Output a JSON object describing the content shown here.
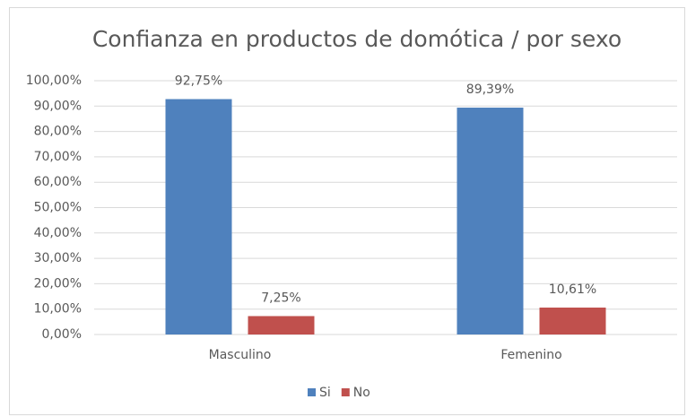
{
  "chart_data": {
    "type": "bar",
    "title": "Confianza en productos de domótica / por sexo",
    "categories": [
      "Masculino",
      "Femenino"
    ],
    "series": [
      {
        "name": "Si",
        "color": "#4f81bd",
        "values": [
          92.75,
          89.39
        ],
        "value_labels": [
          "92,75%",
          "89,39%"
        ]
      },
      {
        "name": "No",
        "color": "#c0504d",
        "values": [
          7.25,
          10.61
        ],
        "value_labels": [
          "7,25%",
          "10,61%"
        ]
      }
    ],
    "ylim": [
      0,
      100
    ],
    "yticks": [
      {
        "value": 0,
        "label": "0,00%"
      },
      {
        "value": 10,
        "label": "10,00%"
      },
      {
        "value": 20,
        "label": "20,00%"
      },
      {
        "value": 30,
        "label": "30,00%"
      },
      {
        "value": 40,
        "label": "40,00%"
      },
      {
        "value": 50,
        "label": "50,00%"
      },
      {
        "value": 60,
        "label": "60,00%"
      },
      {
        "value": 70,
        "label": "70,00%"
      },
      {
        "value": 80,
        "label": "80,00%"
      },
      {
        "value": 90,
        "label": "90,00%"
      },
      {
        "value": 100,
        "label": "100,00%"
      }
    ],
    "grid": true,
    "legend": "bottom"
  }
}
